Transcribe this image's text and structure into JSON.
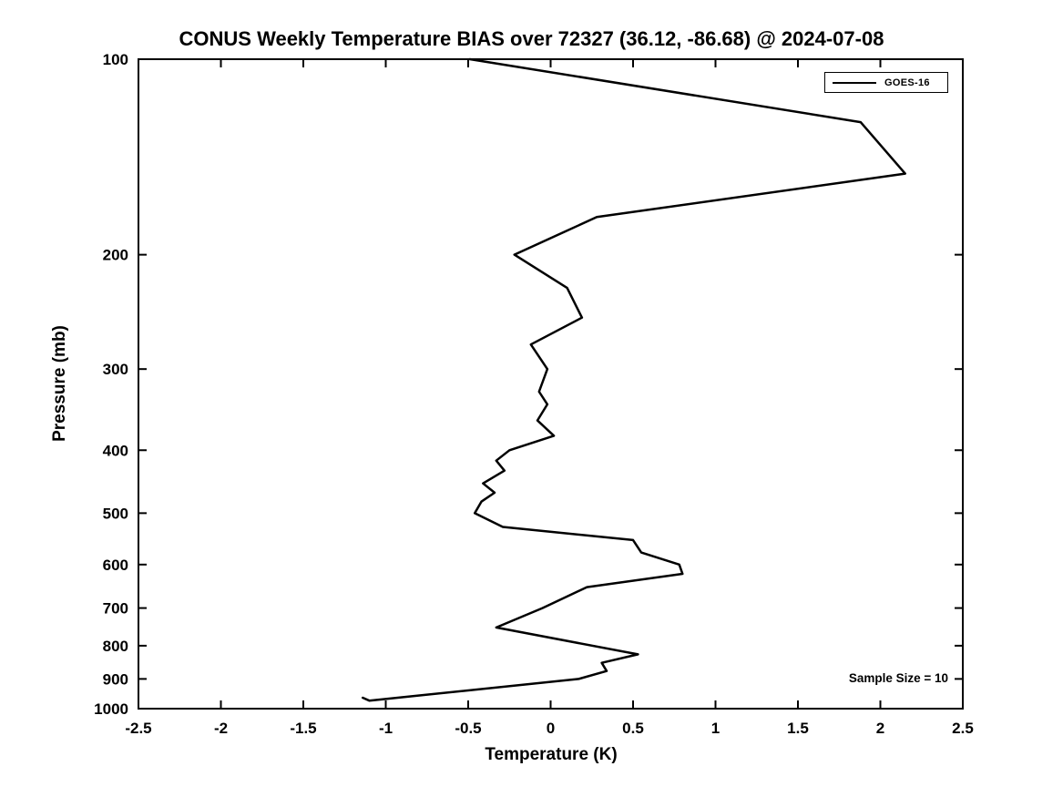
{
  "figure": {
    "title": "CONUS Weekly Temperature BIAS over 72327 (36.12, -86.68) @ 2024-07-08",
    "xlabel": "Temperature (K)",
    "ylabel": "Pressure (mb)",
    "legend": {
      "label": "GOES-16",
      "line_color": "#000000"
    },
    "annotation": "Sample Size = 10",
    "background_color": "#ffffff",
    "line_color": "#000000"
  },
  "chart_data": {
    "type": "line",
    "title": "CONUS Weekly Temperature BIAS over 72327 (36.12, -86.68) @ 2024-07-08",
    "xlabel": "Temperature (K)",
    "ylabel": "Pressure (mb)",
    "xlim": [
      -2.5,
      2.5
    ],
    "ylim": [
      100,
      1000
    ],
    "y_scale": "log",
    "y_inverted": true,
    "grid": false,
    "legend_position": "top-right-inside",
    "x_ticks": [
      -2.5,
      -2,
      -1.5,
      -1,
      -0.5,
      0,
      0.5,
      1,
      1.5,
      2,
      2.5
    ],
    "x_tick_labels": [
      "-2.5",
      "-2",
      "-1.5",
      "-1",
      "-0.5",
      "0",
      "0.5",
      "1",
      "1.5",
      "2",
      "2.5"
    ],
    "y_ticks": [
      100,
      200,
      300,
      400,
      500,
      600,
      700,
      800,
      900,
      1000
    ],
    "y_tick_labels": [
      "100",
      "200",
      "300",
      "400",
      "500",
      "600",
      "700",
      "800",
      "900",
      "1000"
    ],
    "annotations": [
      "Sample Size = 10"
    ],
    "sample_size": 10,
    "station": "72327",
    "station_lat": 36.12,
    "station_lon": -86.68,
    "date": "2024-07-08",
    "series": [
      {
        "name": "GOES-16",
        "color": "#000000",
        "pressure_mb": [
          100,
          125,
          150,
          175,
          200,
          225,
          250,
          275,
          300,
          325,
          340,
          360,
          380,
          400,
          415,
          430,
          450,
          465,
          480,
          500,
          525,
          550,
          575,
          600,
          620,
          650,
          700,
          750,
          825,
          850,
          875,
          900,
          972,
          962
        ],
        "bias_k": [
          -0.49,
          1.88,
          2.15,
          0.28,
          -0.22,
          0.1,
          0.19,
          -0.12,
          -0.02,
          -0.07,
          -0.02,
          -0.08,
          0.02,
          -0.25,
          -0.33,
          -0.28,
          -0.41,
          -0.34,
          -0.42,
          -0.46,
          -0.29,
          0.5,
          0.55,
          0.78,
          0.8,
          0.22,
          -0.05,
          -0.33,
          0.53,
          0.31,
          0.34,
          0.17,
          -1.1,
          -1.14
        ]
      }
    ]
  }
}
